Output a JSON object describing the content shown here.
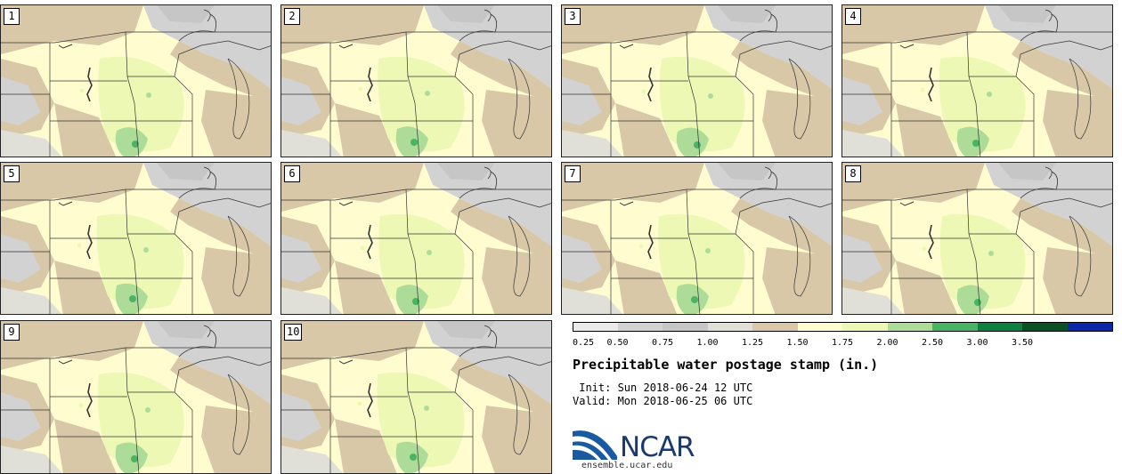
{
  "panels": [
    {
      "label": "1"
    },
    {
      "label": "2"
    },
    {
      "label": "3"
    },
    {
      "label": "4"
    },
    {
      "label": "5"
    },
    {
      "label": "6"
    },
    {
      "label": "7"
    },
    {
      "label": "8"
    },
    {
      "label": "9"
    },
    {
      "label": "10"
    }
  ],
  "colorbar": {
    "ticks": [
      "0.25",
      "0.50",
      "0.75",
      "1.00",
      "1.25",
      "1.50",
      "1.75",
      "2.00",
      "2.50",
      "3.00",
      "3.50"
    ],
    "colors": [
      "#eaeaea",
      "#d2d2d2",
      "#c6c6c6",
      "#e0e0d8",
      "#d8c8a8",
      "#fffdd0",
      "#ecf8b4",
      "#acdc98",
      "#48b464",
      "#0c8040",
      "#0c5028",
      "#0c28a8"
    ]
  },
  "title": "Precipitable water postage stamp (in.)",
  "init": " Init: Sun 2018-06-24 12 UTC",
  "valid": "Valid: Mon 2018-06-25 06 UTC",
  "logo": {
    "name": "NCAR",
    "url": "ensemble.ucar.edu"
  }
}
